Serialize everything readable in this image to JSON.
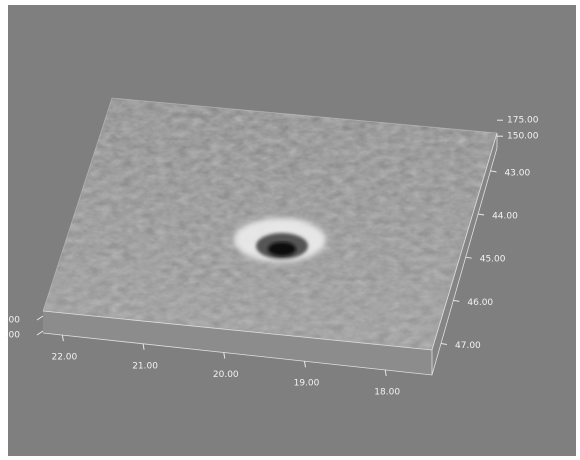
{
  "chart_data": {
    "type": "surface3d",
    "xticks": [
      {
        "value": 22,
        "label": "22.00"
      },
      {
        "value": 21,
        "label": "21.00"
      },
      {
        "value": 20,
        "label": "20.00"
      },
      {
        "value": 19,
        "label": "19.00"
      },
      {
        "value": 18,
        "label": "18.00"
      }
    ],
    "xlim": [
      22.24,
      17.42
    ],
    "yticks": [
      {
        "value": 43,
        "label": "43.00"
      },
      {
        "value": 44,
        "label": "44.00"
      },
      {
        "value": 45,
        "label": "45.00"
      },
      {
        "value": 46,
        "label": "46.00"
      },
      {
        "value": 47,
        "label": "47.00"
      }
    ],
    "ylim": [
      42.47,
      47.73
    ],
    "zticks": [
      {
        "value": 175,
        "label": "175.00"
      },
      {
        "value": 150,
        "label": "150.00"
      }
    ],
    "zlim": [
      130,
      180
    ],
    "left_zlabels": [
      ".00",
      ".00"
    ],
    "background": "#7f7f7f"
  }
}
